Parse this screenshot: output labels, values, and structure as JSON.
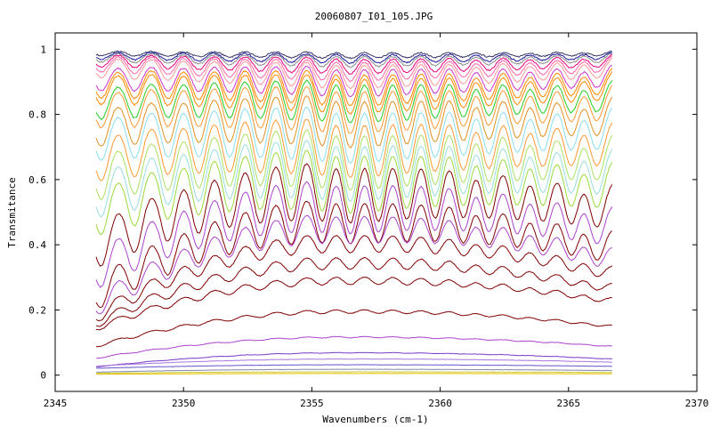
{
  "chart_data": {
    "type": "line",
    "title": "20060807_I01_105.JPG",
    "xlabel": "Wavenumbers (cm-1)",
    "ylabel": "Transmitance",
    "xlim": [
      2345,
      2370
    ],
    "ylim": [
      -0.05,
      1.05
    ],
    "x_ticks": [
      2345,
      2350,
      2355,
      2360,
      2365,
      2370
    ],
    "y_ticks": [
      0,
      0.2,
      0.4,
      0.6,
      0.8,
      1
    ],
    "y_tick_labels": [
      "0",
      "0.2",
      "0.4",
      "0.6",
      "0.8",
      "1"
    ],
    "x_range_data": [
      2346.6,
      2366.7
    ],
    "line_centers": [
      2346.8,
      2348.1,
      2349.4,
      2350.6,
      2351.8,
      2353.0,
      2354.2,
      2355.4,
      2356.5,
      2357.6,
      2358.7,
      2359.8,
      2360.9,
      2361.9,
      2363.0,
      2364.0,
      2365.1,
      2366.1
    ],
    "grid": false,
    "legend": "none",
    "series": [
      {
        "level": 0.995,
        "depth": 0.05,
        "bow": 0.0,
        "color": "#333366"
      },
      {
        "level": 0.993,
        "depth": 0.08,
        "bow": 0.0,
        "color": "#1a1a9c"
      },
      {
        "level": 0.99,
        "depth": 0.1,
        "bow": 0.0,
        "color": "#8a8a8a"
      },
      {
        "level": 0.987,
        "depth": 0.14,
        "bow": 0.0,
        "color": "#e6007e"
      },
      {
        "level": 0.983,
        "depth": 0.18,
        "bow": 0.0,
        "color": "#ff66aa"
      },
      {
        "level": 0.978,
        "depth": 0.22,
        "bow": 0.0,
        "color": "#ff9999"
      },
      {
        "level": 0.97,
        "depth": 0.26,
        "bow": 0.01,
        "color": "#cc33cc"
      },
      {
        "level": 0.96,
        "depth": 0.3,
        "bow": 0.01,
        "color": "#ff8800"
      },
      {
        "level": 0.95,
        "depth": 0.33,
        "bow": 0.01,
        "color": "#ff8800"
      },
      {
        "level": 0.935,
        "depth": 0.36,
        "bow": 0.02,
        "color": "#22cc22"
      },
      {
        "level": 0.92,
        "depth": 0.4,
        "bow": 0.02,
        "color": "#ff9933"
      },
      {
        "level": 0.895,
        "depth": 0.44,
        "bow": 0.03,
        "color": "#e09020"
      },
      {
        "level": 0.865,
        "depth": 0.48,
        "bow": 0.03,
        "color": "#88ddee"
      },
      {
        "level": 0.83,
        "depth": 0.5,
        "bow": 0.04,
        "color": "#ff9933"
      },
      {
        "level": 0.8,
        "depth": 0.52,
        "bow": 0.05,
        "color": "#aae060"
      },
      {
        "level": 0.77,
        "depth": 0.53,
        "bow": 0.06,
        "color": "#99dddd"
      },
      {
        "level": 0.74,
        "depth": 0.54,
        "bow": 0.07,
        "color": "#9ad93a"
      },
      {
        "level": 0.7,
        "depth": 0.52,
        "bow": 0.1,
        "color": "#800000"
      },
      {
        "level": 0.64,
        "depth": 0.46,
        "bow": 0.11,
        "color": "#aa44cc"
      },
      {
        "level": 0.575,
        "depth": 0.4,
        "bow": 0.12,
        "color": "#800000"
      },
      {
        "level": 0.52,
        "depth": 0.3,
        "bow": 0.12,
        "color": "#aa44cc"
      },
      {
        "level": 0.45,
        "depth": 0.22,
        "bow": 0.11,
        "color": "#800000"
      },
      {
        "level": 0.375,
        "depth": 0.18,
        "bow": 0.09,
        "color": "#800000"
      },
      {
        "level": 0.31,
        "depth": 0.14,
        "bow": 0.07,
        "color": "#800000"
      },
      {
        "level": 0.205,
        "depth": 0.1,
        "bow": 0.05,
        "color": "#800000"
      },
      {
        "level": 0.12,
        "depth": 0.06,
        "bow": 0.03,
        "color": "#aa44cc"
      },
      {
        "level": 0.07,
        "depth": 0.04,
        "bow": 0.02,
        "color": "#7a3cc8"
      },
      {
        "level": 0.05,
        "depth": 0.02,
        "bow": 0.01,
        "color": "#aa77dd"
      },
      {
        "level": 0.032,
        "depth": 0.015,
        "bow": 0.005,
        "color": "#6655cc"
      },
      {
        "level": 0.018,
        "depth": 0.01,
        "bow": 0.004,
        "color": "#8888aa"
      },
      {
        "level": 0.01,
        "depth": 0.005,
        "bow": 0.002,
        "color": "#cccc33"
      },
      {
        "level": 0.005,
        "depth": 0.003,
        "bow": 0.001,
        "color": "#e6c000"
      }
    ]
  }
}
